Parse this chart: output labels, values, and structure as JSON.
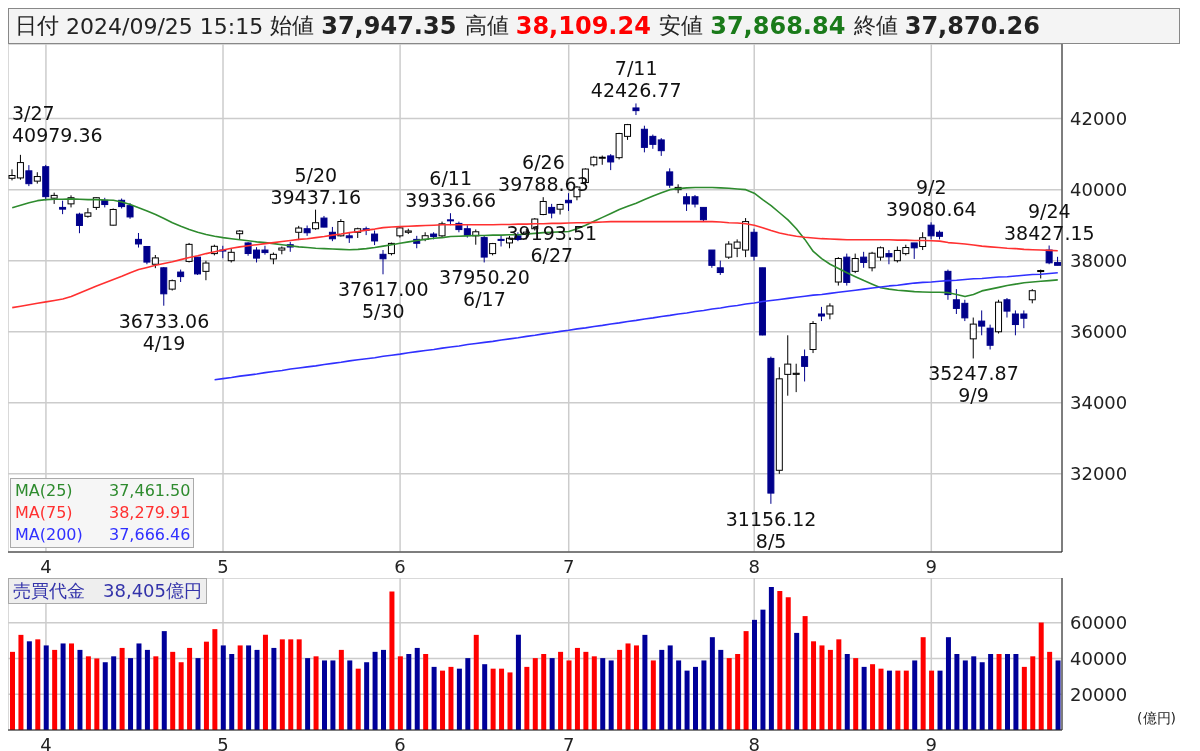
{
  "chart_data": [
    {
      "type": "candlestick",
      "title": "日付 2024/09/25 15:15 始値 37,947.35 高値 38,109.24 安値 37,868.84 終値 37,870.26",
      "categories": [
        null,
        null,
        null,
        null,
        "4",
        null,
        null,
        null,
        null,
        null,
        null,
        null,
        null,
        null,
        null,
        null,
        null,
        null,
        null,
        null,
        null,
        null,
        null,
        null,
        null,
        "5",
        null,
        null,
        null,
        null,
        null,
        null,
        null,
        null,
        null,
        null,
        null,
        null,
        null,
        null,
        null,
        null,
        null,
        null,
        null,
        null,
        "6",
        null,
        null,
        null,
        null,
        null,
        null,
        null,
        null,
        null,
        null,
        null,
        null,
        null,
        null,
        null,
        null,
        null,
        null,
        null,
        "7",
        null,
        null,
        null,
        null,
        null,
        null,
        null,
        null,
        null,
        null,
        null,
        null,
        null,
        null,
        null,
        null,
        null,
        null,
        null,
        null,
        null,
        "8",
        null,
        null,
        null,
        null,
        null,
        null,
        null,
        null,
        null,
        null,
        null,
        null,
        null,
        null,
        null,
        null,
        null,
        null,
        null,
        null,
        "9",
        null,
        null,
        null,
        null,
        null,
        null,
        null,
        null,
        null,
        null,
        null,
        null,
        null,
        null,
        null
      ],
      "ohlc": [
        [
          40320,
          40572,
          40261,
          40398
        ],
        [
          40330,
          40979.36,
          40280,
          40762
        ],
        [
          40530,
          40690,
          40100,
          40168
        ],
        [
          40240,
          40490,
          40170,
          40369
        ],
        [
          40646,
          40697,
          39698,
          39803
        ],
        [
          39760,
          39916,
          39598,
          39838
        ],
        [
          39500,
          39690,
          39310,
          39451
        ],
        [
          39600,
          39840,
          39500,
          39773
        ],
        [
          39310,
          39350,
          38774,
          38992
        ],
        [
          39250,
          39480,
          39210,
          39347
        ],
        [
          39500,
          39780,
          39430,
          39773
        ],
        [
          39700,
          39770,
          39500,
          39581
        ],
        [
          39000,
          39470,
          38990,
          39442
        ],
        [
          39700,
          39750,
          39470,
          39523
        ],
        [
          39550,
          39620,
          39180,
          39232
        ],
        [
          38600,
          38780,
          38370,
          38471
        ],
        [
          38400,
          38410,
          37900,
          37961
        ],
        [
          37900,
          38160,
          37790,
          38079
        ],
        [
          37800,
          37820,
          36733.06,
          37068
        ],
        [
          37200,
          37470,
          37160,
          37438
        ],
        [
          37680,
          37750,
          37400,
          37552
        ],
        [
          37980,
          38500,
          37950,
          38460
        ],
        [
          38100,
          38100,
          37600,
          37628
        ],
        [
          37700,
          38000,
          37450,
          37934
        ],
        [
          38200,
          38450,
          38150,
          38405
        ],
        [
          38300,
          38420,
          38070,
          38274
        ],
        [
          38000,
          38350,
          37950,
          38236
        ],
        [
          38760,
          38860,
          38600,
          38835
        ],
        [
          38500,
          38520,
          38140,
          38202
        ],
        [
          38300,
          38380,
          37950,
          38073
        ],
        [
          38300,
          38420,
          38170,
          38229
        ],
        [
          38050,
          38230,
          37900,
          38179
        ],
        [
          38300,
          38400,
          38180,
          38356
        ],
        [
          38450,
          38530,
          38250,
          38385
        ],
        [
          38800,
          38980,
          38580,
          38920
        ],
        [
          38900,
          38990,
          38700,
          38787
        ],
        [
          38900,
          39437.16,
          38870,
          39069
        ],
        [
          39200,
          39260,
          38940,
          38946
        ],
        [
          38800,
          38950,
          38550,
          38617
        ],
        [
          38700,
          39170,
          38680,
          39103
        ],
        [
          38700,
          38800,
          38500,
          38646
        ],
        [
          38800,
          38930,
          38640,
          38900
        ],
        [
          38900,
          38960,
          38720,
          38855
        ],
        [
          38750,
          38850,
          38440,
          38556
        ],
        [
          38180,
          38300,
          37617.0,
          38054
        ],
        [
          38200,
          38510,
          38150,
          38487
        ],
        [
          38700,
          38950,
          38650,
          38923
        ],
        [
          38800,
          38900,
          38750,
          38837
        ],
        [
          38600,
          38700,
          38350,
          38490
        ],
        [
          38600,
          38800,
          38550,
          38703
        ],
        [
          38750,
          38800,
          38600,
          38683
        ],
        [
          38700,
          39100,
          38650,
          39038
        ],
        [
          39150,
          39336.66,
          39000,
          39134
        ],
        [
          39050,
          39100,
          38800,
          38876
        ],
        [
          38900,
          39000,
          38650,
          38720
        ],
        [
          38700,
          38880,
          38450,
          38814
        ],
        [
          38650,
          38700,
          37950.2,
          38102
        ],
        [
          38200,
          38500,
          38150,
          38482
        ],
        [
          38600,
          38700,
          38400,
          38570
        ],
        [
          38500,
          38700,
          38350,
          38633
        ],
        [
          38700,
          38800,
          38550,
          38596
        ],
        [
          38750,
          38900,
          38600,
          38804
        ],
        [
          38900,
          39200,
          38850,
          39173
        ],
        [
          39300,
          39788.63,
          39280,
          39667
        ],
        [
          39500,
          39600,
          39193.51,
          39341
        ],
        [
          39450,
          39600,
          39300,
          39583
        ],
        [
          39700,
          39900,
          39400,
          39631
        ],
        [
          39800,
          40100,
          39700,
          40074
        ],
        [
          40200,
          40600,
          40100,
          40580
        ],
        [
          40700,
          40950,
          40650,
          40913
        ],
        [
          40900,
          40960,
          40700,
          40912
        ],
        [
          40950,
          41000,
          40550,
          40780
        ],
        [
          40900,
          41600,
          40850,
          41580
        ],
        [
          41500,
          41850,
          41400,
          41831
        ],
        [
          42300,
          42426.77,
          42100,
          42224
        ],
        [
          41700,
          41800,
          41050,
          41190
        ],
        [
          41500,
          41550,
          41150,
          41275
        ],
        [
          41400,
          41450,
          40950,
          41097
        ],
        [
          40500,
          40600,
          40050,
          40126
        ],
        [
          40000,
          40150,
          39900,
          40063
        ],
        [
          39800,
          39900,
          39400,
          39599
        ],
        [
          39800,
          39850,
          39500,
          39594
        ],
        [
          39500,
          39500,
          39100,
          39154
        ],
        [
          38300,
          38300,
          37800,
          37869
        ],
        [
          37800,
          38000,
          37600,
          37667
        ],
        [
          38100,
          38550,
          38050,
          38468
        ],
        [
          38350,
          38600,
          38100,
          38525
        ],
        [
          38300,
          39200,
          38100,
          39101
        ],
        [
          38800,
          38900,
          38000,
          38126
        ],
        [
          37800,
          37800,
          35900,
          35909
        ],
        [
          35250,
          35300,
          31156.12,
          31458
        ],
        [
          32100,
          35000,
          32000,
          34675
        ],
        [
          34800,
          35900,
          34200,
          35089
        ],
        [
          34800,
          35100,
          34300,
          34831
        ],
        [
          35300,
          35500,
          34600,
          35025
        ],
        [
          35500,
          36300,
          35400,
          36232
        ],
        [
          36500,
          36700,
          36300,
          36442
        ],
        [
          36500,
          36800,
          36350,
          36726
        ],
        [
          37400,
          38100,
          37300,
          38062
        ],
        [
          38100,
          38200,
          37300,
          37388
        ],
        [
          37700,
          38200,
          37650,
          38062
        ],
        [
          38100,
          38250,
          37800,
          37951
        ],
        [
          37800,
          38250,
          37700,
          38211
        ],
        [
          38100,
          38400,
          38000,
          38364
        ],
        [
          38200,
          38300,
          37900,
          38110
        ],
        [
          38000,
          38400,
          37950,
          38288
        ],
        [
          38200,
          38450,
          38150,
          38371
        ],
        [
          38500,
          38500,
          38050,
          38362
        ],
        [
          38400,
          38800,
          38300,
          38647
        ],
        [
          39000,
          39080.64,
          38600,
          38700
        ],
        [
          38800,
          38850,
          38600,
          38686
        ],
        [
          37700,
          37750,
          36900,
          37047
        ],
        [
          36900,
          37200,
          36500,
          36657
        ],
        [
          36800,
          36900,
          36300,
          36391
        ],
        [
          35800,
          36400,
          35247.87,
          36215
        ],
        [
          36300,
          36600,
          35900,
          36159
        ],
        [
          36100,
          36200,
          35500,
          35619
        ],
        [
          36000,
          36900,
          35950,
          36833
        ],
        [
          36900,
          36950,
          36400,
          36581
        ],
        [
          36500,
          36600,
          35900,
          36203
        ],
        [
          36500,
          36600,
          36100,
          36380
        ],
        [
          36900,
          37200,
          36800,
          37155
        ],
        [
          37700,
          37750,
          37500,
          37723
        ],
        [
          38300,
          38427.15,
          37900,
          37940
        ],
        [
          37947.35,
          38109.24,
          37868.84,
          37870.26
        ]
      ],
      "series": [
        {
          "type": "line",
          "name": "MA(25) 37,461.50",
          "color": "#2e8b2e",
          "values": [
            39490,
            39560,
            39630,
            39690,
            39720,
            39730,
            39730,
            39740,
            39730,
            39720,
            39720,
            39710,
            39700,
            39650,
            39580,
            39490,
            39400,
            39300,
            39190,
            39070,
            38970,
            38880,
            38800,
            38740,
            38690,
            38650,
            38620,
            38590,
            38560,
            38530,
            38510,
            38480,
            38450,
            38420,
            38390,
            38370,
            38350,
            38340,
            38330,
            38320,
            38310,
            38320,
            38340,
            38370,
            38410,
            38450,
            38490,
            38530,
            38570,
            38600,
            38630,
            38650,
            38680,
            38690,
            38700,
            38710,
            38710,
            38720,
            38720,
            38730,
            38730,
            38750,
            38770,
            38790,
            38800,
            38810,
            38820,
            38900,
            39000,
            39110,
            39220,
            39330,
            39440,
            39530,
            39620,
            39720,
            39820,
            39910,
            40000,
            40030,
            40050,
            40060,
            40060,
            40060,
            40050,
            40040,
            40020,
            40000,
            39900,
            39720,
            39550,
            39350,
            39150,
            38900,
            38600,
            38260,
            38060,
            37900,
            37780,
            37660,
            37550,
            37440,
            37340,
            37240,
            37200,
            37170,
            37150,
            37130,
            37120,
            37110,
            37110,
            37100,
            37050,
            36990,
            37050,
            37150,
            37200,
            37250,
            37300,
            37340,
            37380,
            37400,
            37420,
            37440,
            37460
          ]
        },
        {
          "type": "line",
          "name": "MA(75) 38,279.91",
          "color": "#ff3030",
          "values": [
            36680,
            36720,
            36760,
            36800,
            36840,
            36880,
            36920,
            36990,
            37090,
            37190,
            37290,
            37380,
            37470,
            37560,
            37660,
            37750,
            37810,
            37870,
            37920,
            37970,
            38030,
            38090,
            38140,
            38200,
            38250,
            38300,
            38350,
            38390,
            38420,
            38450,
            38480,
            38510,
            38540,
            38570,
            38600,
            38620,
            38650,
            38680,
            38720,
            38750,
            38790,
            38820,
            38860,
            38890,
            38930,
            38950,
            38960,
            38970,
            38980,
            38990,
            39000,
            39010,
            39010,
            39010,
            39010,
            39010,
            39010,
            39010,
            39020,
            39020,
            39030,
            39030,
            39040,
            39040,
            39050,
            39050,
            39060,
            39070,
            39070,
            39080,
            39090,
            39100,
            39100,
            39100,
            39100,
            39100,
            39100,
            39100,
            39100,
            39100,
            39100,
            39100,
            39100,
            39100,
            39090,
            39070,
            39060,
            39040,
            39000,
            38930,
            38850,
            38780,
            38730,
            38690,
            38660,
            38640,
            38620,
            38610,
            38600,
            38590,
            38590,
            38590,
            38590,
            38590,
            38590,
            38580,
            38580,
            38570,
            38570,
            38560,
            38550,
            38510,
            38490,
            38470,
            38440,
            38410,
            38390,
            38370,
            38350,
            38340,
            38320,
            38310,
            38300,
            38290,
            38280
          ]
        },
        {
          "type": "line",
          "name": "MA(200) 37,666.46",
          "color": "#3030ff",
          "values": [
            null,
            null,
            null,
            null,
            null,
            null,
            null,
            null,
            null,
            null,
            null,
            null,
            null,
            null,
            null,
            null,
            null,
            null,
            null,
            null,
            null,
            null,
            null,
            null,
            34650,
            34680,
            34710,
            34750,
            34780,
            34810,
            34850,
            34880,
            34910,
            34950,
            34980,
            35010,
            35040,
            35080,
            35110,
            35140,
            35180,
            35210,
            35240,
            35270,
            35310,
            35340,
            35370,
            35410,
            35440,
            35470,
            35500,
            35540,
            35570,
            35600,
            35640,
            35670,
            35700,
            35730,
            35770,
            35800,
            35830,
            35870,
            35900,
            35940,
            35970,
            36010,
            36040,
            36080,
            36110,
            36150,
            36180,
            36220,
            36250,
            36290,
            36320,
            36360,
            36390,
            36430,
            36460,
            36500,
            36530,
            36570,
            36600,
            36640,
            36670,
            36710,
            36740,
            36780,
            36810,
            36850,
            36880,
            36910,
            36940,
            36970,
            37000,
            37030,
            37050,
            37080,
            37110,
            37140,
            37170,
            37200,
            37230,
            37260,
            37290,
            37310,
            37340,
            37370,
            37390,
            37400,
            37420,
            37440,
            37450,
            37470,
            37490,
            37500,
            37520,
            37540,
            37550,
            37570,
            37590,
            37610,
            37620,
            37640,
            37660
          ]
        }
      ],
      "ylim": [
        29800,
        44100
      ],
      "yticks": [
        32000,
        34000,
        36000,
        38000,
        40000,
        42000
      ],
      "grid": true,
      "annotations": [
        "3/27\n40979.36",
        {
          "text": "36733.06\n4/19",
          "y": 36733.06
        },
        {
          "text": "5/20\n39437.16",
          "y": 39437.16
        },
        {
          "text": "37617.00\n5/30",
          "y": 37617.0
        },
        {
          "text": "6/11\n39336.66",
          "y": 39336.66
        },
        {
          "text": "37950.20\n6/17",
          "y": 37950.2
        },
        {
          "text": "6/26\n39788.63",
          "y": 39788.63
        },
        {
          "text": "39193.51\n6/27",
          "y": 39193.51
        },
        {
          "text": "7/11\n42426.77",
          "y": 42426.77
        },
        {
          "text": "31156.12\n8/5",
          "y": 31156.12
        },
        {
          "text": "9/2\n39080.64",
          "y": 39080.64
        },
        {
          "text": "35247.87\n9/9",
          "y": 35247.87
        },
        {
          "text": "9/24\n38427.15",
          "y": 38427.15
        }
      ]
    },
    {
      "type": "bar",
      "title": "売買代金　38,405億円",
      "ylabel": "(億円)",
      "categories": [
        null,
        null,
        null,
        null,
        "4",
        null,
        null,
        null,
        null,
        null,
        null,
        null,
        null,
        null,
        null,
        null,
        null,
        null,
        null,
        null,
        null,
        null,
        null,
        null,
        null,
        "5",
        null,
        null,
        null,
        null,
        null,
        null,
        null,
        null,
        null,
        null,
        null,
        null,
        null,
        null,
        null,
        null,
        null,
        null,
        null,
        null,
        "6",
        null,
        null,
        null,
        null,
        null,
        null,
        null,
        null,
        null,
        null,
        null,
        null,
        null,
        null,
        null,
        null,
        null,
        null,
        null,
        "7",
        null,
        null,
        null,
        null,
        null,
        null,
        null,
        null,
        null,
        null,
        null,
        null,
        null,
        null,
        null,
        null,
        null,
        null,
        null,
        null,
        null,
        "8",
        null,
        null,
        null,
        null,
        null,
        null,
        null,
        null,
        null,
        null,
        null,
        null,
        null,
        null,
        null,
        null,
        null,
        null,
        null,
        null,
        "9",
        null,
        null,
        null,
        null,
        null,
        null,
        null,
        null,
        null,
        null,
        null,
        null,
        null,
        null,
        null
      ],
      "values": [
        43700,
        53200,
        49600,
        50700,
        47300,
        44800,
        48400,
        48400,
        44800,
        41200,
        40000,
        37900,
        41200,
        45900,
        40200,
        48400,
        44800,
        41200,
        55300,
        43700,
        37900,
        45900,
        40200,
        49400,
        56400,
        47300,
        42500,
        47300,
        47300,
        44800,
        53200,
        45900,
        50700,
        50700,
        50700,
        40200,
        41200,
        38900,
        38900,
        44800,
        38900,
        34300,
        37900,
        43700,
        44800,
        77400,
        41200,
        42500,
        45900,
        42500,
        35300,
        33200,
        35300,
        34300,
        40200,
        53200,
        36800,
        34300,
        34300,
        32200,
        53200,
        35300,
        40200,
        42500,
        40200,
        43700,
        38900,
        45900,
        43700,
        41200,
        40200,
        38900,
        44800,
        48400,
        47300,
        53200,
        38900,
        44800,
        47300,
        38900,
        33200,
        35300,
        38900,
        51900,
        44800,
        40200,
        42500,
        55300,
        61600,
        67300,
        79900,
        77800,
        74300,
        54300,
        63700,
        49600,
        47300,
        44800,
        50700,
        42500,
        40200,
        35300,
        36800,
        34300,
        33200,
        33200,
        33200,
        38900,
        51900,
        33200,
        33200,
        51900,
        42500,
        38900,
        41200,
        37900,
        42500,
        42500,
        42500,
        42500,
        35300,
        41200,
        60100,
        43700,
        38900
      ],
      "colors": [
        "#ff0000",
        "#ff0000",
        "#000099",
        "#ff0000",
        "#000099",
        "#ff0000",
        "#000099",
        "#ff0000",
        "#000099",
        "#ff0000",
        "#ff0000",
        "#000099",
        "#000099",
        "#ff0000",
        "#000099",
        "#000099",
        "#000099",
        "#ff0000",
        "#000099",
        "#ff0000",
        "#ff0000",
        "#ff0000",
        "#000099",
        "#ff0000",
        "#ff0000",
        "#000099",
        "#000099",
        "#ff0000",
        "#000099",
        "#000099",
        "#ff0000",
        "#000099",
        "#ff0000",
        "#ff0000",
        "#ff0000",
        "#000099",
        "#ff0000",
        "#000099",
        "#000099",
        "#ff0000",
        "#000099",
        "#ff0000",
        "#000099",
        "#000099",
        "#000099",
        "#ff0000",
        "#ff0000",
        "#000099",
        "#000099",
        "#ff0000",
        "#000099",
        "#ff0000",
        "#ff0000",
        "#000099",
        "#000099",
        "#ff0000",
        "#000099",
        "#ff0000",
        "#ff0000",
        "#ff0000",
        "#000099",
        "#ff0000",
        "#ff0000",
        "#ff0000",
        "#000099",
        "#ff0000",
        "#ff0000",
        "#ff0000",
        "#ff0000",
        "#ff0000",
        "#000099",
        "#000099",
        "#ff0000",
        "#ff0000",
        "#ff0000",
        "#000099",
        "#ff0000",
        "#000099",
        "#000099",
        "#000099",
        "#000099",
        "#000099",
        "#000099",
        "#000099",
        "#000099",
        "#ff0000",
        "#ff0000",
        "#ff0000",
        "#000099",
        "#000099",
        "#000099",
        "#ff0000",
        "#ff0000",
        "#000099",
        "#ff0000",
        "#ff0000",
        "#ff0000",
        "#ff0000",
        "#ff0000",
        "#000099",
        "#ff0000",
        "#000099",
        "#ff0000",
        "#ff0000",
        "#000099",
        "#ff0000",
        "#ff0000",
        "#000099",
        "#ff0000",
        "#ff0000",
        "#000099",
        "#000099",
        "#000099",
        "#000099",
        "#000099",
        "#000099",
        "#000099",
        "#ff0000",
        "#000099",
        "#000099",
        "#ff0000",
        "#ff0000",
        "#ff0000",
        "#ff0000",
        "#000099"
      ],
      "ylim": [
        0,
        85000
      ],
      "yticks": [
        20000,
        40000,
        60000
      ],
      "grid": true
    }
  ]
}
